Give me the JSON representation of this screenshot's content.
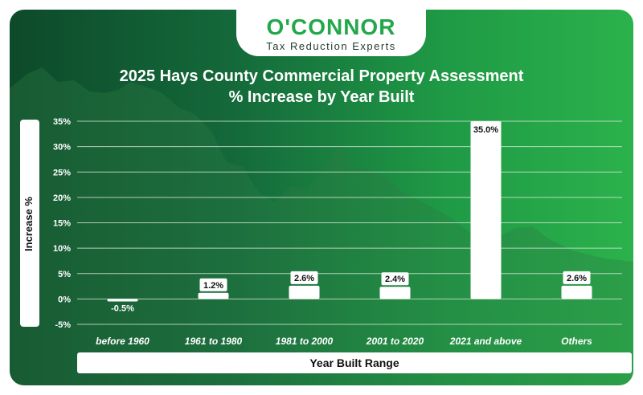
{
  "logo": {
    "name": "O'CONNOR",
    "tagline": "Tax Reduction Experts"
  },
  "chart_data": {
    "type": "bar",
    "title_line1": "2025 Hays County Commercial Property Assessment",
    "title_line2": "% Increase by Year Built",
    "xlabel": "Year Built Range",
    "ylabel": "Increase %",
    "categories": [
      "before 1960",
      "1961 to 1980",
      "1981 to 2000",
      "2001 to 2020",
      "2021 and above",
      "Others"
    ],
    "values": [
      -0.5,
      1.2,
      2.6,
      2.4,
      35.0,
      2.6
    ],
    "value_labels": [
      "-0.5%",
      "1.2%",
      "2.6%",
      "2.4%",
      "35.0%",
      "2.6%"
    ],
    "yticks": [
      "-5%",
      "0%",
      "5%",
      "10%",
      "15%",
      "20%",
      "25%",
      "30%",
      "35%"
    ],
    "ytick_values": [
      -5,
      0,
      5,
      10,
      15,
      20,
      25,
      30,
      35
    ],
    "ylim": [
      -5,
      35
    ],
    "grid": true,
    "colors": {
      "bar": "#ffffff",
      "grid": "#d8e8d8",
      "text": "#ffffff"
    }
  }
}
